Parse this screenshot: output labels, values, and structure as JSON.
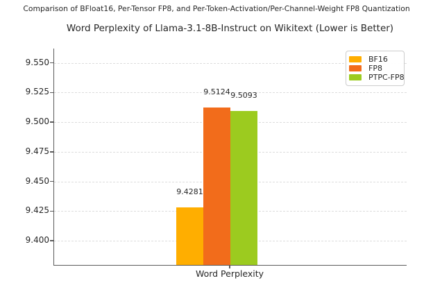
{
  "header": {
    "suptitle": "Comparison of BFloat16, Per-Tensor FP8, and Per-Token-Activation/Per-Channel-Weight FP8 Quantization",
    "title": "Word Perplexity of Llama-3.1-8B-Instruct on Wikitext (Lower is Better)"
  },
  "chart_data": {
    "type": "bar",
    "title": "Word Perplexity of Llama-3.1-8B-Instruct on Wikitext (Lower is Better)",
    "suptitle": "Comparison of BFloat16, Per-Tensor FP8, and Per-Token-Activation/Per-Channel-Weight FP8 Quantization",
    "categories": [
      "Word Perplexity"
    ],
    "series": [
      {
        "name": "BF16",
        "value": 9.4281,
        "label": "9.4281",
        "color": "#FFAE00"
      },
      {
        "name": "FP8",
        "value": 9.5124,
        "label": "9.5124",
        "color": "#F26C1B"
      },
      {
        "name": "PTPC-FP8",
        "value": 9.5093,
        "label": "9.5093",
        "color": "#9CCB1F"
      }
    ],
    "xlabel": "",
    "ylabel": "",
    "ylim": [
      9.379,
      9.562
    ],
    "yticks": [
      9.4,
      9.425,
      9.45,
      9.475,
      9.5,
      9.525,
      9.55
    ],
    "ytick_labels": [
      "9.400",
      "9.425",
      "9.450",
      "9.475",
      "9.500",
      "9.525",
      "9.550"
    ],
    "grid": "horizontal-dashed",
    "grid_color": "#dcdcdc",
    "spine_color": "#5a5a5a",
    "legend_position": "upper-right",
    "legend_entries": [
      "BF16",
      "FP8",
      "PTPC-FP8"
    ]
  }
}
